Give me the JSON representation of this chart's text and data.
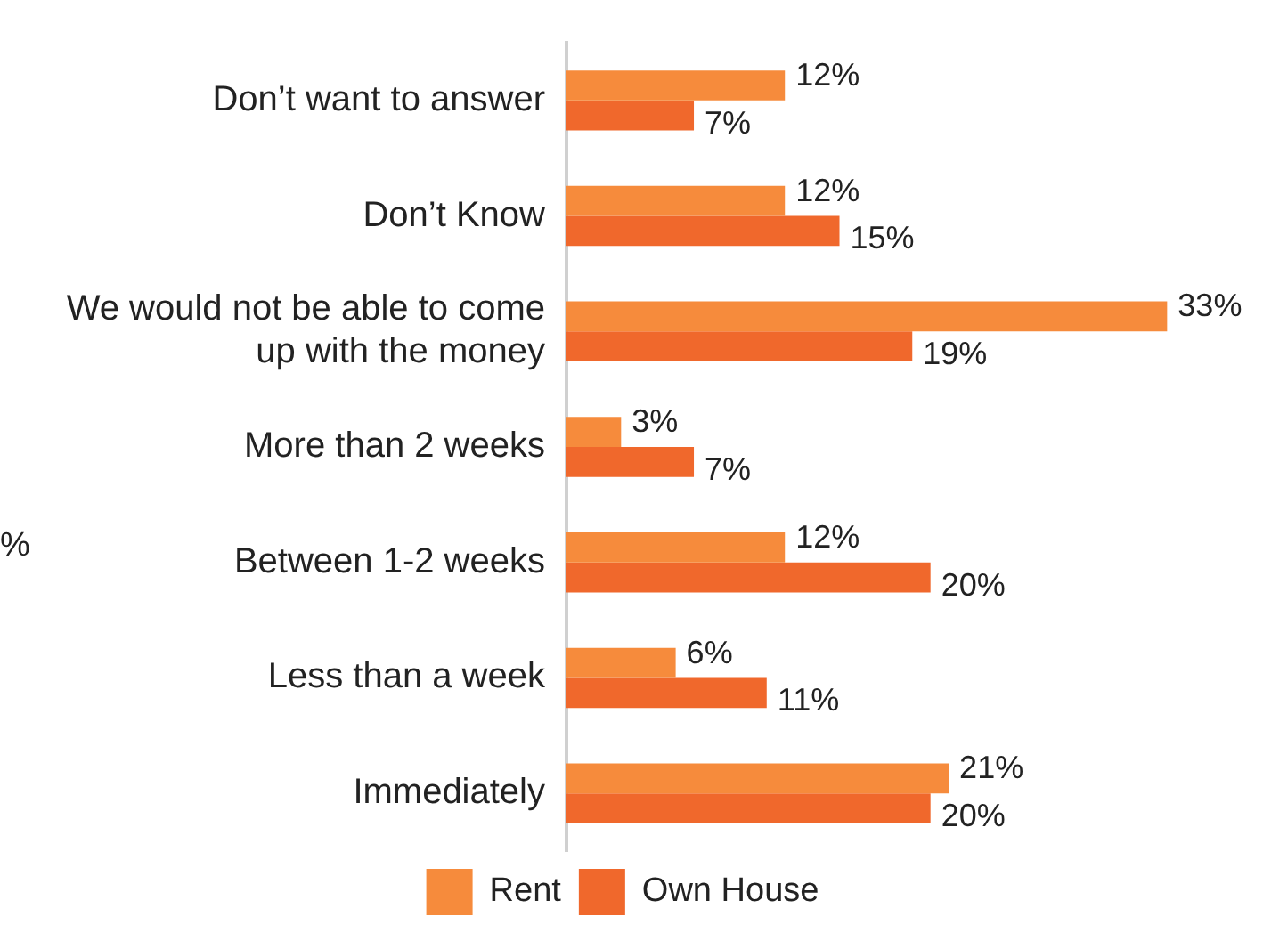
{
  "chart_data": {
    "type": "bar",
    "orientation": "horizontal",
    "legend": "bottom",
    "grid": false,
    "categories": [
      "Don’t want to answer",
      "Don’t Know",
      "We would not be able to come up with the money",
      "More than 2 weeks",
      "Between 1-2 weeks",
      "Less than a week",
      "Immediately"
    ],
    "series": [
      {
        "name": "Rent",
        "color": "#f68b3c",
        "values": [
          12,
          12,
          33,
          3,
          12,
          6,
          21
        ],
        "value_labels": [
          "12%",
          "12%",
          "33%",
          "3%",
          "12%",
          "6%",
          "21%"
        ]
      },
      {
        "name": "Own House",
        "color": "#f0682c",
        "values": [
          7,
          15,
          19,
          7,
          20,
          11,
          20
        ],
        "value_labels": [
          "7%",
          "15%",
          "19%",
          "7%",
          "20%",
          "11%",
          "20%"
        ]
      }
    ],
    "annotations": [
      "%"
    ]
  }
}
